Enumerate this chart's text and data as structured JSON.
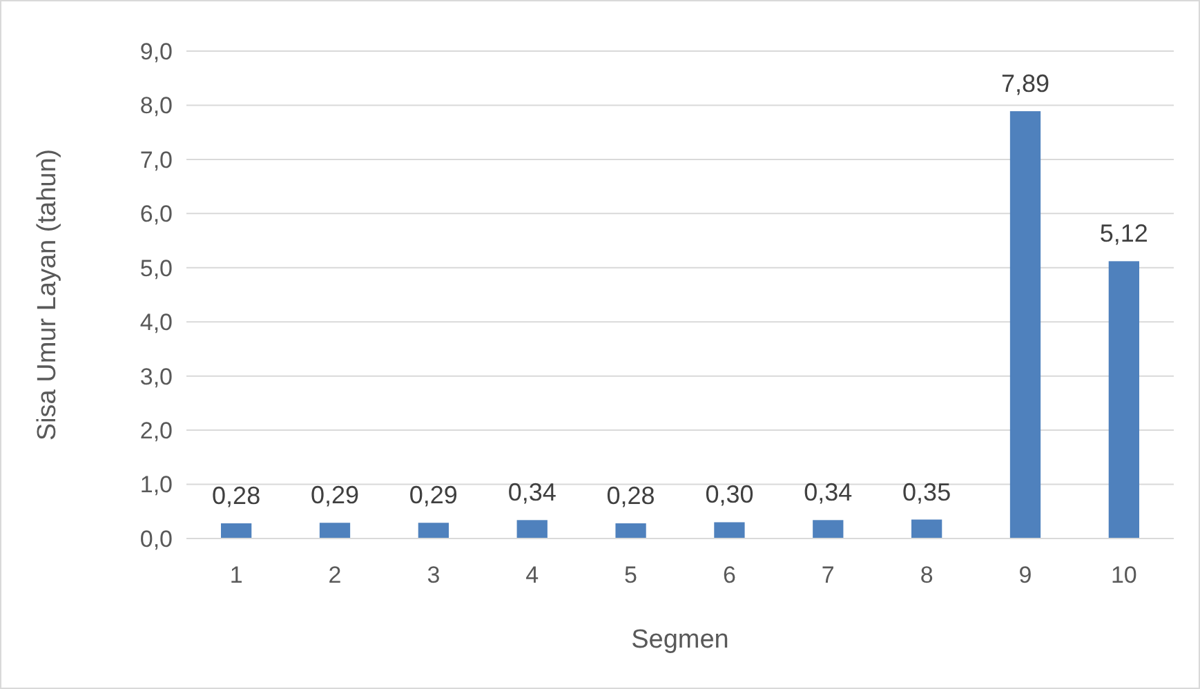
{
  "chart_data": {
    "type": "bar",
    "xlabel": "Segmen",
    "ylabel": "Sisa Umur Layan (tahun)",
    "categories": [
      "1",
      "2",
      "3",
      "4",
      "5",
      "6",
      "7",
      "8",
      "9",
      "10"
    ],
    "values": [
      0.28,
      0.29,
      0.29,
      0.34,
      0.28,
      0.3,
      0.34,
      0.35,
      7.89,
      5.12
    ],
    "value_labels": [
      "0,28",
      "0,29",
      "0,29",
      "0,34",
      "0,28",
      "0,30",
      "0,34",
      "0,35",
      "7,89",
      "5,12"
    ],
    "color": "#4f81bd",
    "ylim": [
      0,
      9
    ],
    "yticks": [
      {
        "value": 0,
        "label": "0,0"
      },
      {
        "value": 1,
        "label": "1,0"
      },
      {
        "value": 2,
        "label": "2,0"
      },
      {
        "value": 3,
        "label": "3,0"
      },
      {
        "value": 4,
        "label": "4,0"
      },
      {
        "value": 5,
        "label": "5,0"
      },
      {
        "value": 6,
        "label": "6,0"
      },
      {
        "value": 7,
        "label": "7,0"
      },
      {
        "value": 8,
        "label": "8,0"
      },
      {
        "value": 9,
        "label": "9,0"
      }
    ],
    "grid": "y"
  }
}
